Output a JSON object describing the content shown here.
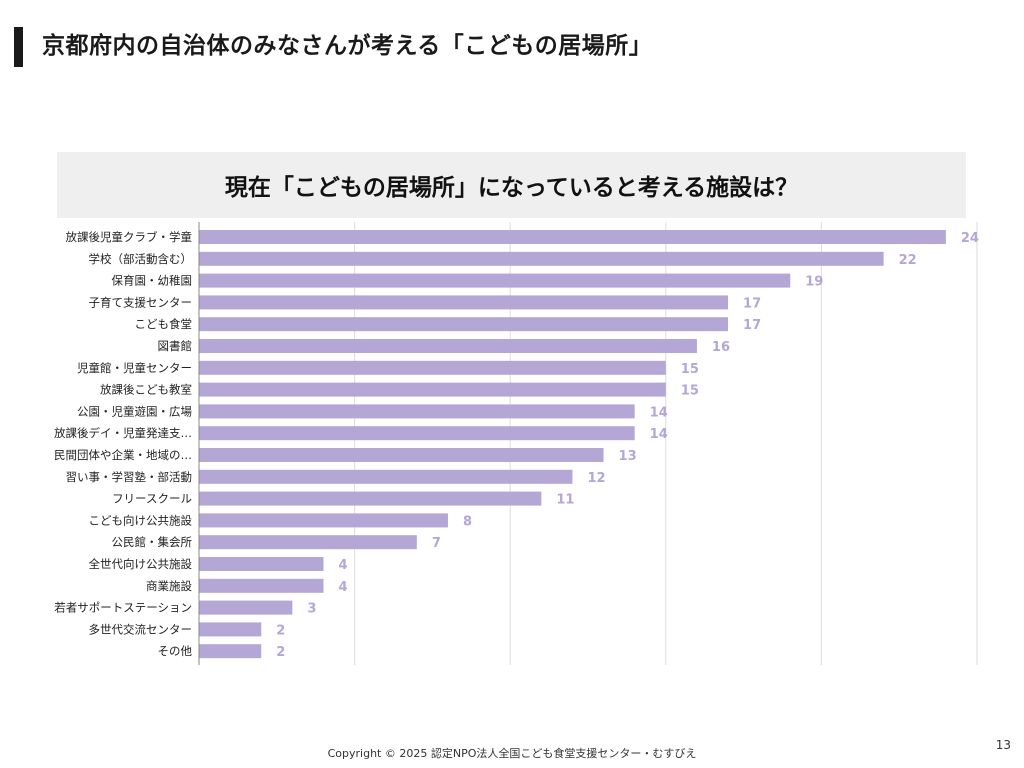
{
  "page": {
    "title": "京都府内の自治体のみなさんが考える「こどもの居場所」",
    "footer": "Copyright © 2025 認定NPO法人全国こども食堂支援センター・むすびえ",
    "page_number": "13"
  },
  "chart_data": {
    "type": "bar",
    "orientation": "horizontal",
    "title": "現在「こどもの居場所」になっていると考える施設は？",
    "xlabel": "",
    "ylabel": "",
    "xlim": [
      0,
      25
    ],
    "grid": true,
    "bar_color": "#b4a7d6",
    "label_color": "#b4a7d6",
    "categories": [
      "放課後児童クラブ・学童",
      "学校（部活動含む）",
      "保育園・幼稚園",
      "子育て支援センター",
      "こども食堂",
      "図書館",
      "児童館・児童センター",
      "放課後こども教室",
      "公園・児童遊園・広場",
      "放課後デイ・児童発達支…",
      "民間団体や企業・地域の…",
      "習い事・学習塾・部活動",
      "フリースクール",
      "こども向け公共施設",
      "公民館・集会所",
      "全世代向け公共施設",
      "商業施設",
      "若者サポートステーション",
      "多世代交流センター",
      "その他"
    ],
    "values": [
      24,
      22,
      19,
      17,
      17,
      16,
      15,
      15,
      14,
      14,
      13,
      12,
      11,
      8,
      7,
      4,
      4,
      3,
      2,
      2
    ]
  }
}
